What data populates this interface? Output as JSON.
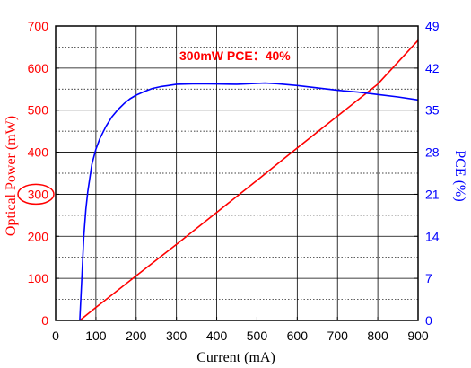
{
  "chart_data": {
    "type": "line",
    "x_axis": {
      "label": "Current (mA)",
      "min": 0,
      "max": 900,
      "ticks": [
        0,
        100,
        200,
        300,
        400,
        500,
        600,
        700,
        800,
        900
      ],
      "color": "#000000"
    },
    "y_axis_left": {
      "label": "Optical Power (mW)",
      "min": 0,
      "max": 700,
      "ticks": [
        0,
        100,
        200,
        300,
        400,
        500,
        600,
        700
      ],
      "color": "#ff0000"
    },
    "y_axis_right": {
      "label": "PCE (%)",
      "min": 0,
      "max": 49,
      "ticks": [
        0,
        7,
        14,
        21,
        28,
        35,
        42,
        49
      ],
      "color": "#0000ff"
    },
    "grid": {
      "major_solid": true,
      "minor_dashed": true
    },
    "series": [
      {
        "axis": "left",
        "color": "#ff0000",
        "points": [
          [
            60,
            0
          ],
          [
            100,
            31
          ],
          [
            200,
            106
          ],
          [
            300,
            181
          ],
          [
            400,
            257
          ],
          [
            500,
            333
          ],
          [
            600,
            410
          ],
          [
            700,
            486
          ],
          [
            800,
            562
          ],
          [
            900,
            666
          ]
        ]
      },
      {
        "axis": "right",
        "color": "#0000ff",
        "points": [
          [
            60,
            0
          ],
          [
            65,
            7
          ],
          [
            70,
            14
          ],
          [
            75,
            18.5
          ],
          [
            80,
            21.5
          ],
          [
            90,
            26
          ],
          [
            100,
            28.5
          ],
          [
            110,
            30.3
          ],
          [
            125,
            32.3
          ],
          [
            140,
            33.9
          ],
          [
            155,
            35.1
          ],
          [
            170,
            36.1
          ],
          [
            185,
            36.9
          ],
          [
            200,
            37.5
          ],
          [
            220,
            38.1
          ],
          [
            240,
            38.6
          ],
          [
            260,
            38.9
          ],
          [
            280,
            39.1
          ],
          [
            300,
            39.3
          ],
          [
            350,
            39.4
          ],
          [
            400,
            39.35
          ],
          [
            450,
            39.3
          ],
          [
            500,
            39.45
          ],
          [
            520,
            39.5
          ],
          [
            550,
            39.4
          ],
          [
            600,
            39.1
          ],
          [
            650,
            38.7
          ],
          [
            700,
            38.3
          ],
          [
            750,
            38.0
          ],
          [
            800,
            37.6
          ],
          [
            850,
            37.2
          ],
          [
            900,
            36.7
          ]
        ]
      }
    ],
    "annotations": [
      {
        "text": "300mW PCE：40%",
        "color": "#ff0000"
      }
    ],
    "highlight": {
      "axis": "left",
      "tick_value": 300,
      "shape": "ellipse",
      "color": "#ff0000"
    }
  }
}
